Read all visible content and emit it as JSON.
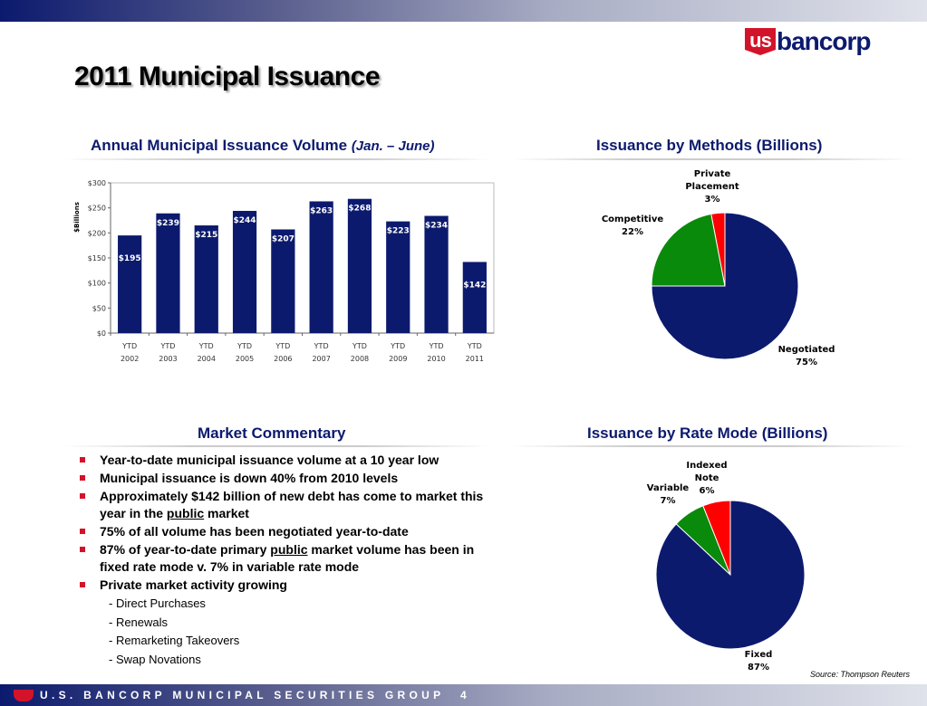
{
  "header": {
    "logo_us": "us",
    "logo_word": "bancorp",
    "title": "2011 Municipal Issuance"
  },
  "colors": {
    "navy": "#0c1a6e",
    "green": "#0a8a0a",
    "red": "#ff0000",
    "bullet": "#d3132a"
  },
  "sections": {
    "volume_title": "Annual Municipal Issuance Volume",
    "volume_subtitle": "(Jan. – June)",
    "methods_title": "Issuance by Methods (Billions)",
    "commentary_title": "Market Commentary",
    "rate_title": "Issuance by Rate Mode (Billions)"
  },
  "chart_data": [
    {
      "type": "bar",
      "title": "Annual Municipal Issuance Volume (Jan. – June)",
      "ylabel": "$Billions",
      "xlabel": "",
      "categories": [
        [
          "YTD",
          "2002"
        ],
        [
          "YTD",
          "2003"
        ],
        [
          "YTD",
          "2004"
        ],
        [
          "YTD",
          "2005"
        ],
        [
          "YTD",
          "2006"
        ],
        [
          "YTD",
          "2007"
        ],
        [
          "YTD",
          "2008"
        ],
        [
          "YTD",
          "2009"
        ],
        [
          "YTD",
          "2010"
        ],
        [
          "YTD",
          "2011"
        ]
      ],
      "values": [
        195,
        239,
        215,
        244,
        207,
        263,
        268,
        223,
        234,
        142
      ],
      "data_labels": [
        "$195",
        "$239",
        "$215",
        "$244",
        "$207",
        "$263",
        "$268",
        "$223",
        "$234",
        "$142"
      ],
      "yticks": [
        "$0",
        "$50",
        "$100",
        "$150",
        "$200",
        "$250",
        "$300"
      ],
      "ylim": [
        0,
        300
      ],
      "grid": false,
      "color": "#0c1a6e"
    },
    {
      "type": "pie",
      "title": "Issuance by Methods (Billions)",
      "slices": [
        {
          "label": "Negotiated",
          "value": 75,
          "pct": "75%",
          "color": "#0c1a6e"
        },
        {
          "label": "Competitive",
          "value": 22,
          "pct": "22%",
          "color": "#0a8a0a"
        },
        {
          "label": "Private Placement",
          "value": 3,
          "pct": "3%",
          "color": "#ff0000"
        }
      ]
    },
    {
      "type": "pie",
      "title": "Issuance by Rate Mode (Billions)",
      "slices": [
        {
          "label": "Fixed",
          "value": 87,
          "pct": "87%",
          "color": "#0c1a6e"
        },
        {
          "label": "Variable",
          "value": 7,
          "pct": "7%",
          "color": "#0a8a0a"
        },
        {
          "label": "Indexed Note",
          "value": 6,
          "pct": "6%",
          "color": "#ff0000"
        }
      ]
    }
  ],
  "commentary": {
    "b1": "Year-to-date municipal issuance volume at a 10 year low",
    "b2": "Municipal issuance is down 40% from 2010 levels",
    "b3a": "Approximately $142 billion of new debt has come to market this year in the ",
    "b3u": "public",
    "b3b": " market",
    "b4": "75% of all volume has been negotiated year-to-date",
    "b5a": "87% of year-to-date primary ",
    "b5u": "public",
    "b5b": " market volume has been in fixed rate mode v. 7% in variable rate mode",
    "b6": "Private market activity growing",
    "s1": "- Direct Purchases",
    "s2": "- Renewals",
    "s3": "- Remarketing Takeovers",
    "s4": "- Swap Novations"
  },
  "source": "Source:  Thompson Reuters",
  "footer": {
    "text": "U.S. BANCORP MUNICIPAL SECURITIES GROUP",
    "page": "4"
  }
}
